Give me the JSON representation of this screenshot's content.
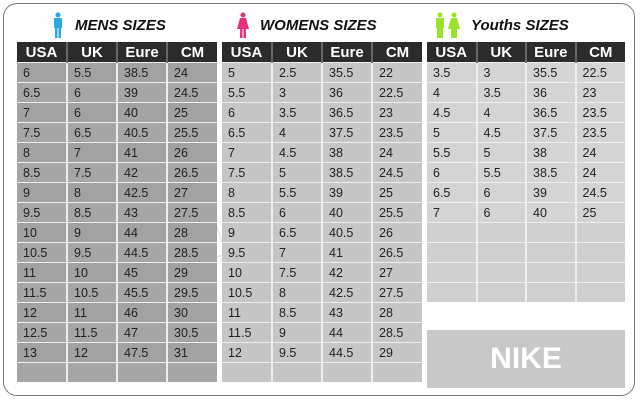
{
  "columns": [
    "USA",
    "UK",
    "Eure",
    "CM"
  ],
  "mens": {
    "title": "MENS SIZES",
    "icon": "male-figure-icon",
    "color": "#29a9e0",
    "rows": [
      [
        "6",
        "5.5",
        "38.5",
        "24"
      ],
      [
        "6.5",
        "6",
        "39",
        "24.5"
      ],
      [
        "7",
        "6",
        "40",
        "25"
      ],
      [
        "7.5",
        "6.5",
        "40.5",
        "25.5"
      ],
      [
        "8",
        "7",
        "41",
        "26"
      ],
      [
        "8.5",
        "7.5",
        "42",
        "26.5"
      ],
      [
        "9",
        "8",
        "42.5",
        "27"
      ],
      [
        "9.5",
        "8.5",
        "43",
        "27.5"
      ],
      [
        "10",
        "9",
        "44",
        "28"
      ],
      [
        "10.5",
        "9.5",
        "44.5",
        "28.5"
      ],
      [
        "11",
        "10",
        "45",
        "29"
      ],
      [
        "11.5",
        "10.5",
        "45.5",
        "29.5"
      ],
      [
        "12",
        "11",
        "46",
        "30"
      ],
      [
        "12.5",
        "11.5",
        "47",
        "30.5"
      ],
      [
        "13",
        "12",
        "47.5",
        "31"
      ],
      [
        "",
        "",
        "",
        ""
      ]
    ]
  },
  "womens": {
    "title": "WOMENS SIZES",
    "icon": "female-figure-icon",
    "color": "#e8307f",
    "rows": [
      [
        "5",
        "2.5",
        "35.5",
        "22"
      ],
      [
        "5.5",
        "3",
        "36",
        "22.5"
      ],
      [
        "6",
        "3.5",
        "36.5",
        "23"
      ],
      [
        "6.5",
        "4",
        "37.5",
        "23.5"
      ],
      [
        "7",
        "4.5",
        "38",
        "24"
      ],
      [
        "7.5",
        "5",
        "38.5",
        "24.5"
      ],
      [
        "8",
        "5.5",
        "39",
        "25"
      ],
      [
        "8.5",
        "6",
        "40",
        "25.5"
      ],
      [
        "9",
        "6.5",
        "40.5",
        "26"
      ],
      [
        "9.5",
        "7",
        "41",
        "26.5"
      ],
      [
        "10",
        "7.5",
        "42",
        "27"
      ],
      [
        "10.5",
        "8",
        "42.5",
        "27.5"
      ],
      [
        "11",
        "8.5",
        "43",
        "28"
      ],
      [
        "11.5",
        "9",
        "44",
        "28.5"
      ],
      [
        "12",
        "9.5",
        "44.5",
        "29"
      ],
      [
        "",
        "",
        "",
        ""
      ]
    ]
  },
  "youth": {
    "title": "Youths  SIZES",
    "icon": "youth-figures-icon",
    "color": "#9be22a",
    "rows": [
      [
        "3.5",
        "3",
        "35.5",
        "22.5"
      ],
      [
        "4",
        "3.5",
        "36",
        "23"
      ],
      [
        "4.5",
        "4",
        "36.5",
        "23.5"
      ],
      [
        "5",
        "4.5",
        "37.5",
        "23.5"
      ],
      [
        "5.5",
        "5",
        "38",
        "24"
      ],
      [
        "6",
        "5.5",
        "38.5",
        "24"
      ],
      [
        "6.5",
        "6",
        "39",
        "24.5"
      ],
      [
        "7",
        "6",
        "40",
        "25"
      ]
    ]
  },
  "brand": "NIKE",
  "watermark": "SHOES"
}
